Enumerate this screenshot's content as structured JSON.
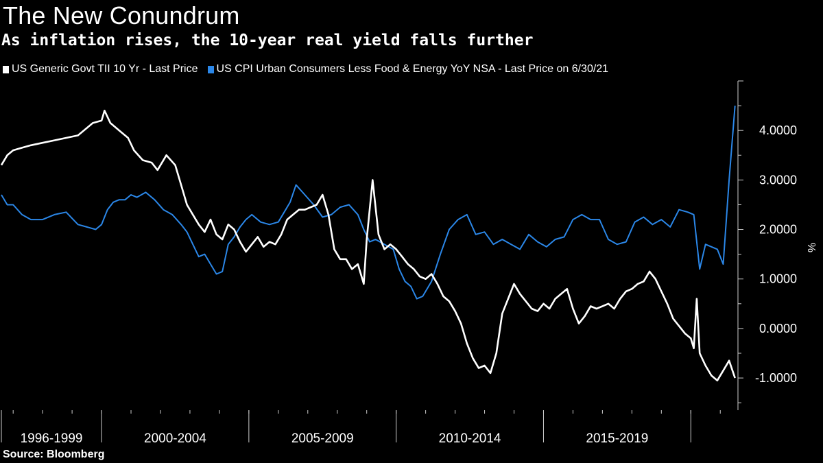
{
  "title": "The New Conundrum",
  "subtitle": "As inflation rises, the 10-year real yield falls further",
  "source": "Source: Bloomberg",
  "colors": {
    "background": "#000000",
    "tii": "#ffffff",
    "cpi": "#2b87e8",
    "axis": "#cfcfcf"
  },
  "chart_data": {
    "type": "line",
    "xlabel": "",
    "ylabel": "%",
    "x_range": [
      1996.6,
      2021.6
    ],
    "ylim": [
      -1.65,
      5.0
    ],
    "yticks": [
      -1.0,
      0.0,
      1.0,
      2.0,
      3.0,
      4.0
    ],
    "ytick_labels": [
      "-1.0000",
      "0.0000",
      "1.0000",
      "2.0000",
      "3.0000",
      "4.0000"
    ],
    "period_labels": [
      {
        "label": "1996-1999",
        "start": 1996.6,
        "end": 2000.0
      },
      {
        "label": "2000-2004",
        "start": 2000.0,
        "end": 2005.0
      },
      {
        "label": "2005-2009",
        "start": 2005.0,
        "end": 2010.0
      },
      {
        "label": "2010-2014",
        "start": 2010.0,
        "end": 2015.0
      },
      {
        "label": "2015-2019",
        "start": 2015.0,
        "end": 2020.0
      }
    ],
    "period_boundaries": [
      2000.0,
      2005.0,
      2010.0,
      2015.0,
      2020.0
    ],
    "series": [
      {
        "name": "US Generic Govt TII 10 Yr - Last Price",
        "x": [
          1996.6,
          1996.8,
          1997.0,
          1997.3,
          1997.6,
          1998.0,
          1998.4,
          1998.8,
          1999.2,
          1999.5,
          1999.7,
          2000.0,
          2000.1,
          2000.3,
          2000.6,
          2000.9,
          2001.1,
          2001.4,
          2001.7,
          2001.9,
          2002.2,
          2002.5,
          2002.7,
          2002.9,
          2003.1,
          2003.3,
          2003.5,
          2003.7,
          2003.9,
          2004.1,
          2004.3,
          2004.5,
          2004.7,
          2004.9,
          2005.1,
          2005.3,
          2005.5,
          2005.7,
          2005.9,
          2006.1,
          2006.3,
          2006.5,
          2006.7,
          2006.9,
          2007.1,
          2007.3,
          2007.5,
          2007.7,
          2007.9,
          2008.1,
          2008.3,
          2008.5,
          2008.7,
          2008.8,
          2008.9,
          2009.0,
          2009.2,
          2009.4,
          2009.6,
          2009.8,
          2010.0,
          2010.2,
          2010.4,
          2010.6,
          2010.8,
          2011.0,
          2011.2,
          2011.4,
          2011.6,
          2011.8,
          2012.0,
          2012.2,
          2012.4,
          2012.6,
          2012.8,
          2013.0,
          2013.2,
          2013.4,
          2013.6,
          2013.8,
          2014.0,
          2014.2,
          2014.4,
          2014.6,
          2014.8,
          2015.0,
          2015.2,
          2015.4,
          2015.6,
          2015.8,
          2016.0,
          2016.2,
          2016.4,
          2016.6,
          2016.8,
          2017.0,
          2017.2,
          2017.4,
          2017.6,
          2017.8,
          2018.0,
          2018.2,
          2018.4,
          2018.6,
          2018.8,
          2019.0,
          2019.2,
          2019.4,
          2019.6,
          2019.8,
          2020.0,
          2020.1,
          2020.2,
          2020.3,
          2020.5,
          2020.7,
          2020.9,
          2021.1,
          2021.3,
          2021.5
        ],
        "values": [
          3.3,
          3.5,
          3.6,
          3.65,
          3.7,
          3.75,
          3.8,
          3.85,
          3.9,
          4.05,
          4.15,
          4.2,
          4.4,
          4.15,
          4.0,
          3.85,
          3.6,
          3.4,
          3.35,
          3.2,
          3.5,
          3.3,
          2.9,
          2.5,
          2.3,
          2.1,
          1.95,
          2.2,
          1.9,
          1.8,
          2.1,
          2.0,
          1.75,
          1.55,
          1.7,
          1.85,
          1.65,
          1.75,
          1.7,
          1.9,
          2.2,
          2.3,
          2.4,
          2.4,
          2.45,
          2.5,
          2.7,
          2.3,
          1.6,
          1.4,
          1.4,
          1.2,
          1.3,
          1.1,
          0.9,
          1.8,
          3.0,
          1.9,
          1.6,
          1.7,
          1.6,
          1.45,
          1.3,
          1.2,
          1.05,
          1.0,
          1.1,
          0.9,
          0.65,
          0.55,
          0.35,
          0.1,
          -0.3,
          -0.6,
          -0.8,
          -0.75,
          -0.9,
          -0.5,
          0.3,
          0.6,
          0.9,
          0.7,
          0.55,
          0.4,
          0.35,
          0.5,
          0.4,
          0.6,
          0.7,
          0.8,
          0.4,
          0.1,
          0.25,
          0.45,
          0.4,
          0.45,
          0.5,
          0.4,
          0.6,
          0.75,
          0.8,
          0.9,
          0.95,
          1.15,
          1.0,
          0.75,
          0.5,
          0.2,
          0.05,
          -0.1,
          -0.2,
          -0.4,
          0.6,
          -0.5,
          -0.75,
          -0.95,
          -1.05,
          -0.85,
          -0.65,
          -1.0
        ]
      },
      {
        "name": "US CPI Urban Consumers Less Food & Energy YoY NSA - Last Price on 6/30/21",
        "x": [
          1996.6,
          1996.8,
          1997.0,
          1997.3,
          1997.6,
          1998.0,
          1998.4,
          1998.8,
          1999.2,
          1999.5,
          1999.8,
          2000.0,
          2000.2,
          2000.4,
          2000.6,
          2000.8,
          2001.0,
          2001.2,
          2001.5,
          2001.8,
          2002.1,
          2002.4,
          2002.7,
          2002.9,
          2003.1,
          2003.3,
          2003.5,
          2003.7,
          2003.9,
          2004.1,
          2004.3,
          2004.5,
          2004.7,
          2004.9,
          2005.1,
          2005.4,
          2005.7,
          2006.0,
          2006.2,
          2006.4,
          2006.6,
          2006.9,
          2007.2,
          2007.5,
          2007.8,
          2008.1,
          2008.4,
          2008.7,
          2008.9,
          2009.1,
          2009.3,
          2009.6,
          2009.9,
          2010.1,
          2010.3,
          2010.5,
          2010.7,
          2010.9,
          2011.2,
          2011.5,
          2011.8,
          2012.1,
          2012.4,
          2012.7,
          2013.0,
          2013.3,
          2013.6,
          2013.9,
          2014.2,
          2014.5,
          2014.8,
          2015.1,
          2015.4,
          2015.7,
          2016.0,
          2016.3,
          2016.6,
          2016.9,
          2017.2,
          2017.5,
          2017.8,
          2018.1,
          2018.4,
          2018.7,
          2019.0,
          2019.3,
          2019.6,
          2019.9,
          2020.1,
          2020.3,
          2020.5,
          2020.7,
          2020.9,
          2021.1,
          2021.3,
          2021.5
        ],
        "values": [
          2.7,
          2.5,
          2.5,
          2.3,
          2.2,
          2.2,
          2.3,
          2.35,
          2.1,
          2.05,
          2.0,
          2.1,
          2.4,
          2.55,
          2.6,
          2.6,
          2.7,
          2.65,
          2.75,
          2.6,
          2.4,
          2.3,
          2.1,
          1.95,
          1.7,
          1.45,
          1.5,
          1.3,
          1.1,
          1.15,
          1.7,
          1.85,
          2.05,
          2.2,
          2.3,
          2.15,
          2.1,
          2.15,
          2.35,
          2.55,
          2.9,
          2.7,
          2.5,
          2.25,
          2.3,
          2.45,
          2.5,
          2.3,
          2.0,
          1.75,
          1.8,
          1.7,
          1.6,
          1.2,
          0.95,
          0.85,
          0.6,
          0.65,
          0.95,
          1.5,
          2.0,
          2.2,
          2.3,
          1.9,
          1.95,
          1.7,
          1.8,
          1.7,
          1.6,
          1.9,
          1.75,
          1.65,
          1.8,
          1.85,
          2.2,
          2.3,
          2.2,
          2.2,
          1.8,
          1.7,
          1.75,
          2.15,
          2.25,
          2.1,
          2.2,
          2.05,
          2.4,
          2.35,
          2.3,
          1.2,
          1.7,
          1.65,
          1.6,
          1.3,
          3.0,
          4.5
        ]
      }
    ]
  }
}
